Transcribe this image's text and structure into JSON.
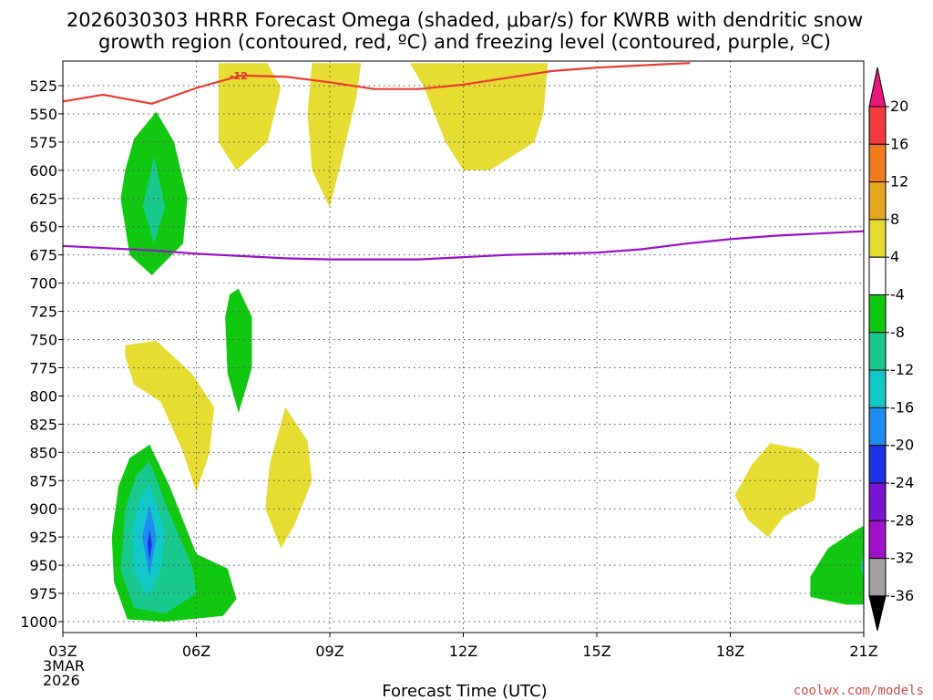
{
  "chart_data": {
    "type": "time-height contour",
    "title_line1": "2026030303 HRRR Forecast Omega (shaded, μbar/s) for KWRB with dendritic snow",
    "title_line2": "growth region (contoured, red, ºC) and freezing level (contoured, purple, ºC)",
    "xlabel": "Forecast Time (UTC)",
    "credit": "coolwx.com/models",
    "x_range_hours": [
      0,
      18
    ],
    "x_ticks": [
      {
        "hour": 0,
        "label": "03Z"
      },
      {
        "hour": 3,
        "label": "06Z"
      },
      {
        "hour": 6,
        "label": "09Z"
      },
      {
        "hour": 9,
        "label": "12Z"
      },
      {
        "hour": 12,
        "label": "15Z"
      },
      {
        "hour": 15,
        "label": "18Z"
      },
      {
        "hour": 18,
        "label": "21Z"
      }
    ],
    "x_date_line1": "3MAR",
    "x_date_line2": "2026",
    "y_range_hpa": [
      505,
      1017
    ],
    "y_ticks": [
      525,
      550,
      575,
      600,
      625,
      650,
      675,
      700,
      725,
      750,
      775,
      800,
      825,
      850,
      875,
      900,
      925,
      950,
      975,
      1000
    ],
    "colorbar": {
      "labels": [
        "20",
        "16",
        "12",
        "8",
        "4",
        "-4",
        "-8",
        "-12",
        "-16",
        "-20",
        "-24",
        "-28",
        "-32",
        "-36"
      ],
      "bands": [
        {
          "lo": 20,
          "hi": null,
          "color": "#e8187c"
        },
        {
          "lo": 16,
          "hi": 20,
          "color": "#f23a3a"
        },
        {
          "lo": 12,
          "hi": 16,
          "color": "#f07a1e"
        },
        {
          "lo": 8,
          "hi": 12,
          "color": "#e6a822"
        },
        {
          "lo": 4,
          "hi": 8,
          "color": "#e6dc32"
        },
        {
          "lo": -4,
          "hi": 4,
          "color": "#ffffff"
        },
        {
          "lo": -8,
          "hi": -4,
          "color": "#10c810"
        },
        {
          "lo": -12,
          "hi": -8,
          "color": "#19c88c"
        },
        {
          "lo": -16,
          "hi": -12,
          "color": "#12c8c8"
        },
        {
          "lo": -20,
          "hi": -16,
          "color": "#1e8cf0"
        },
        {
          "lo": -24,
          "hi": -20,
          "color": "#1e32e6"
        },
        {
          "lo": -28,
          "hi": -24,
          "color": "#7814d2"
        },
        {
          "lo": -32,
          "hi": -28,
          "color": "#a010c8"
        },
        {
          "lo": -36,
          "hi": -32,
          "color": "#a0a0a0"
        },
        {
          "lo": null,
          "hi": -36,
          "color": "#000000"
        }
      ]
    },
    "contour_label": "-12",
    "dgz_line_minus12": {
      "color": "#ea3a32",
      "points": [
        [
          0,
          539
        ],
        [
          0.9,
          533
        ],
        [
          2.0,
          541
        ],
        [
          3.0,
          527
        ],
        [
          4.0,
          516
        ],
        [
          5.0,
          517
        ],
        [
          6.0,
          522
        ],
        [
          7.0,
          528
        ],
        [
          8.0,
          528
        ],
        [
          9.0,
          524
        ],
        [
          10.0,
          518
        ],
        [
          11.0,
          512
        ],
        [
          12.0,
          509
        ],
        [
          13.5,
          506
        ],
        [
          14.1,
          505
        ]
      ]
    },
    "freezing_level": {
      "color": "#9a10c8",
      "points": [
        [
          0,
          667
        ],
        [
          1.0,
          669
        ],
        [
          2.0,
          671
        ],
        [
          3.0,
          674
        ],
        [
          4.0,
          676
        ],
        [
          5.0,
          678
        ],
        [
          6.0,
          679
        ],
        [
          8.0,
          679
        ],
        [
          10.0,
          675
        ],
        [
          11.0,
          674
        ],
        [
          12.0,
          673
        ],
        [
          13.0,
          670
        ],
        [
          14.0,
          665
        ],
        [
          15.0,
          661
        ],
        [
          16.0,
          658
        ],
        [
          17.0,
          656
        ],
        [
          18.0,
          654
        ]
      ]
    },
    "shaded_regions": [
      {
        "band": "4 to 8",
        "color": "#e6dc32",
        "points": [
          [
            3.5,
            505
          ],
          [
            4.6,
            505
          ],
          [
            4.9,
            527
          ],
          [
            4.6,
            575
          ],
          [
            3.9,
            600
          ],
          [
            3.5,
            575
          ],
          [
            3.5,
            535
          ]
        ]
      },
      {
        "band": "4 to 8",
        "color": "#e6dc32",
        "points": [
          [
            5.6,
            505
          ],
          [
            6.7,
            505
          ],
          [
            6.6,
            535
          ],
          [
            6.3,
            585
          ],
          [
            6.0,
            633
          ],
          [
            5.6,
            600
          ],
          [
            5.5,
            550
          ]
        ]
      },
      {
        "band": "4 to 8",
        "color": "#e6dc32",
        "points": [
          [
            7.8,
            505
          ],
          [
            10.9,
            505
          ],
          [
            10.8,
            550
          ],
          [
            10.6,
            575
          ],
          [
            9.6,
            600
          ],
          [
            9.0,
            600
          ],
          [
            8.6,
            575
          ],
          [
            8.1,
            525
          ]
        ]
      },
      {
        "band": "-8 to -4",
        "color": "#10c810",
        "points": [
          [
            2.1,
            548
          ],
          [
            2.5,
            575
          ],
          [
            2.8,
            625
          ],
          [
            2.7,
            665
          ],
          [
            2.0,
            693
          ],
          [
            1.5,
            675
          ],
          [
            1.3,
            625
          ],
          [
            1.4,
            600
          ],
          [
            1.6,
            572
          ]
        ]
      },
      {
        "band": "-12 to -8",
        "color": "#19c88c",
        "points": [
          [
            2.05,
            588
          ],
          [
            2.3,
            632
          ],
          [
            2.05,
            665
          ],
          [
            1.8,
            632
          ]
        ]
      },
      {
        "band": "-8 to -4",
        "color": "#10c810",
        "points": [
          [
            3.95,
            705
          ],
          [
            4.25,
            730
          ],
          [
            4.25,
            775
          ],
          [
            3.95,
            815
          ],
          [
            3.7,
            780
          ],
          [
            3.65,
            730
          ],
          [
            3.75,
            710
          ]
        ]
      },
      {
        "band": "4 to 8",
        "color": "#e6dc32",
        "points": [
          [
            1.4,
            755
          ],
          [
            2.1,
            751
          ],
          [
            2.9,
            780
          ],
          [
            3.4,
            810
          ],
          [
            3.3,
            850
          ],
          [
            3.0,
            885
          ],
          [
            2.7,
            850
          ],
          [
            2.2,
            805
          ],
          [
            1.6,
            790
          ],
          [
            1.4,
            765
          ]
        ]
      },
      {
        "band": "4 to 8",
        "color": "#e6dc32",
        "points": [
          [
            5.0,
            810
          ],
          [
            5.5,
            840
          ],
          [
            5.6,
            875
          ],
          [
            5.2,
            915
          ],
          [
            4.9,
            935
          ],
          [
            4.55,
            900
          ],
          [
            4.65,
            860
          ]
        ]
      },
      {
        "band": "-8 to -4",
        "color": "#10c810",
        "points": [
          [
            1.95,
            843
          ],
          [
            2.4,
            880
          ],
          [
            3.0,
            940
          ],
          [
            3.7,
            953
          ],
          [
            3.9,
            980
          ],
          [
            3.6,
            995
          ],
          [
            2.3,
            1000
          ],
          [
            1.45,
            998
          ],
          [
            1.15,
            965
          ],
          [
            1.1,
            925
          ],
          [
            1.25,
            880
          ],
          [
            1.5,
            855
          ]
        ]
      },
      {
        "band": "-12 to -8",
        "color": "#19c88c",
        "points": [
          [
            1.95,
            858
          ],
          [
            2.35,
            900
          ],
          [
            2.9,
            950
          ],
          [
            3.0,
            975
          ],
          [
            2.3,
            993
          ],
          [
            1.6,
            988
          ],
          [
            1.3,
            955
          ],
          [
            1.4,
            900
          ],
          [
            1.65,
            870
          ]
        ]
      },
      {
        "band": "-16 to -12",
        "color": "#12c8c8",
        "points": [
          [
            1.95,
            878
          ],
          [
            2.3,
            920
          ],
          [
            2.2,
            955
          ],
          [
            1.9,
            978
          ],
          [
            1.6,
            955
          ],
          [
            1.55,
            920
          ],
          [
            1.7,
            893
          ]
        ]
      },
      {
        "band": "-20 to -16",
        "color": "#1e8cf0",
        "points": [
          [
            1.95,
            896
          ],
          [
            2.1,
            925
          ],
          [
            1.95,
            960
          ],
          [
            1.78,
            925
          ]
        ]
      },
      {
        "band": "-24 to -20",
        "color": "#1e32e6",
        "points": [
          [
            1.95,
            918
          ],
          [
            2.0,
            932
          ],
          [
            1.95,
            946
          ],
          [
            1.9,
            932
          ]
        ]
      },
      {
        "band": "4 to 8",
        "color": "#e6dc32",
        "points": [
          [
            15.9,
            842
          ],
          [
            16.6,
            847
          ],
          [
            17.0,
            860
          ],
          [
            16.9,
            892
          ],
          [
            16.2,
            907
          ],
          [
            15.85,
            925
          ],
          [
            15.4,
            910
          ],
          [
            15.1,
            888
          ],
          [
            15.5,
            860
          ]
        ]
      },
      {
        "band": "-8 to -4",
        "color": "#10c810",
        "points": [
          [
            18.0,
            915
          ],
          [
            18.0,
            985
          ],
          [
            17.6,
            985
          ],
          [
            16.8,
            978
          ],
          [
            16.8,
            960
          ],
          [
            17.2,
            935
          ],
          [
            17.7,
            922
          ]
        ]
      },
      {
        "band": "-12 to -8",
        "color": "#19c88c",
        "points": [
          [
            18.0,
            940
          ],
          [
            18.0,
            962
          ],
          [
            17.92,
            951
          ]
        ]
      }
    ],
    "terrain": {
      "color": "#a0522d",
      "pressure_hpa": 1013
    }
  }
}
